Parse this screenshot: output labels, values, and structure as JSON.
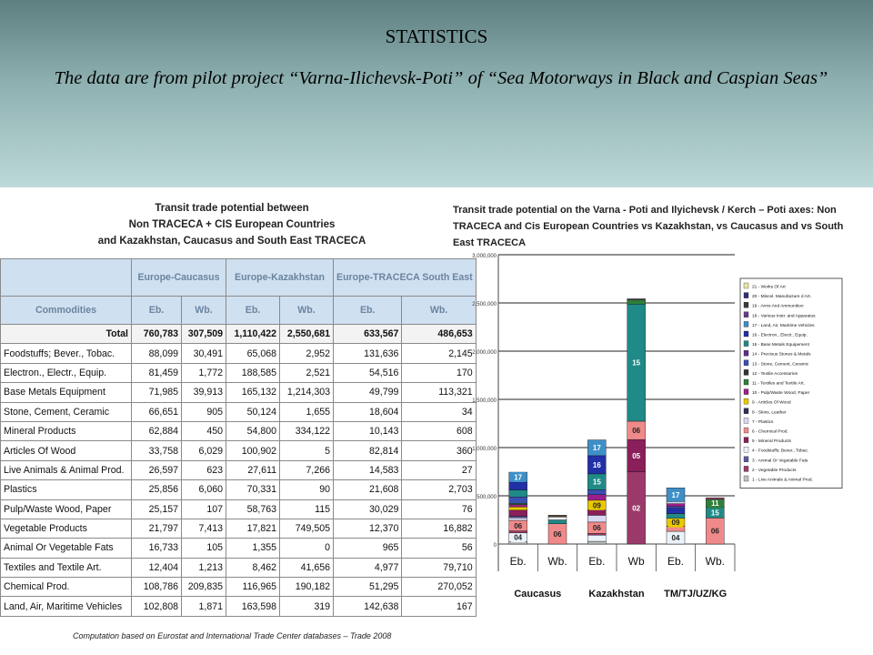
{
  "header": {
    "title": "STATISTICS",
    "subtitle": "The data are from pilot project  “Varna-Ilichevsk-Poti” of “Sea Motorways in Black and Caspian Seas”"
  },
  "table": {
    "title_lines": [
      "Transit trade potential between",
      "Non TRACECA + CIS European Countries",
      "and Kazakhstan, Caucasus and South East TRACECA"
    ],
    "groups": [
      "Europe-Caucasus",
      "Europe-Kazakhstan",
      "Europe-TRACECA South East"
    ],
    "commodities_header": "Commodities",
    "subheaders": [
      "Eb.",
      "Wb.",
      "Eb.",
      "Wb.",
      "Eb.",
      "Wb."
    ],
    "rows": [
      {
        "name": "Total",
        "values": [
          "760,783",
          "307,509",
          "1,110,422",
          "2,550,681",
          "633,567",
          "486,653"
        ]
      },
      {
        "name": "Foodstuffs; Bever., Tobac.",
        "values": [
          "88,099",
          "30,491",
          "65,068",
          "2,952",
          "131,636",
          "2,145"
        ]
      },
      {
        "name": "Electron., Electr., Equip.",
        "values": [
          "81,459",
          "1,772",
          "188,585",
          "2,521",
          "54,516",
          "170"
        ]
      },
      {
        "name": "Base Metals Equipment",
        "values": [
          "71,985",
          "39,913",
          "165,132",
          "1,214,303",
          "49,799",
          "113,321"
        ]
      },
      {
        "name": "Stone, Cement, Ceramic",
        "values": [
          "66,651",
          "905",
          "50,124",
          "1,655",
          "18,604",
          "34"
        ]
      },
      {
        "name": "Mineral Products",
        "values": [
          "62,884",
          "450",
          "54,800",
          "334,122",
          "10,143",
          "608"
        ]
      },
      {
        "name": "Articles Of Wood",
        "values": [
          "33,758",
          "6,029",
          "100,902",
          "5",
          "82,814",
          "360"
        ]
      },
      {
        "name": "Live Animals & Animal Prod.",
        "values": [
          "26,597",
          "623",
          "27,611",
          "7,266",
          "14,583",
          "27"
        ]
      },
      {
        "name": "Plastics",
        "values": [
          "25,856",
          "6,060",
          "70,331",
          "90",
          "21,608",
          "2,703"
        ]
      },
      {
        "name": "Pulp/Waste Wood, Paper",
        "values": [
          "25,157",
          "107",
          "58,763",
          "115",
          "30,029",
          "76"
        ]
      },
      {
        "name": "Vegetable Products",
        "values": [
          "21,797",
          "7,413",
          "17,821",
          "749,505",
          "12,370",
          "16,882"
        ]
      },
      {
        "name": "Animal Or Vegetable Fats",
        "values": [
          "16,733",
          "105",
          "1,355",
          "0",
          "965",
          "56"
        ]
      },
      {
        "name": "Textiles and Textile Art.",
        "values": [
          "12,404",
          "1,213",
          "8,462",
          "41,656",
          "4,977",
          "79,710"
        ]
      },
      {
        "name": "Chemical Prod.",
        "values": [
          "108,786",
          "209,835",
          "116,965",
          "190,182",
          "51,295",
          "270,052"
        ]
      },
      {
        "name": "Land, Air, Maritime Vehicles",
        "values": [
          "102,808",
          "1,871",
          "163,598",
          "319",
          "142,638",
          "167"
        ]
      }
    ],
    "note": "Computation based on Eurostat and International Trade Center databases – Trade 2008"
  },
  "chart_data": {
    "type": "bar",
    "stacked": true,
    "title": "Transit trade potential on the Varna - Poti and Ilyichevsk / Kerch – Poti axes: Non TRACECA and Cis European Countries vs Kazakhstan, vs Caucasus and vs South East TRACECA",
    "categories": [
      "Eb.",
      "Wb.",
      "Eb.",
      "Wb",
      "Eb.",
      "Wb."
    ],
    "groups": [
      {
        "name": "Caucasus",
        "categories": [
          0,
          1
        ]
      },
      {
        "name": "Kazakhstan",
        "categories": [
          2,
          3
        ]
      },
      {
        "name": "TM/TJ/UZ/KG",
        "categories": [
          4,
          5
        ]
      }
    ],
    "ylim": [
      0,
      3000000
    ],
    "yticks": [
      "0",
      "500,000",
      "1,000,000",
      "1,500,000",
      "2,000,000",
      "2,500,000",
      "3,000,000"
    ],
    "grid": true,
    "legend_position": "right",
    "legend": [
      {
        "code": "21",
        "label": "21 - Works Of Art",
        "color": "#e7e6a6"
      },
      {
        "code": "20",
        "label": "20 - Miscel. Manufacture d Art.",
        "color": "#2f2f7a"
      },
      {
        "code": "19",
        "label": "19 - Arms And Ammunition",
        "color": "#3c3c3c"
      },
      {
        "code": "18",
        "label": "18 - Various Instr. and Apparatus",
        "color": "#6a3d8a"
      },
      {
        "code": "17",
        "label": "17 - Land, Air, Maritime Vehicles",
        "color": "#3e8fc8"
      },
      {
        "code": "16",
        "label": "16 - Electron., Electr., Equip.",
        "color": "#2230a8"
      },
      {
        "code": "15",
        "label": "15 - Base Metals Equipement",
        "color": "#1f8a87"
      },
      {
        "code": "14",
        "label": "14 - Precious Stones & Metals",
        "color": "#5b2f8a"
      },
      {
        "code": "13",
        "label": "13 - Stone, Cement, Ceramic",
        "color": "#3a4fb0"
      },
      {
        "code": "12",
        "label": "12 - Textile Accessories",
        "color": "#333333"
      },
      {
        "code": "11",
        "label": "11 - Textiles and Textile Art.",
        "color": "#2f7f3a"
      },
      {
        "code": "10",
        "label": "10 - Pulp/Waste Wood, Paper",
        "color": "#9b1f8a"
      },
      {
        "code": "09",
        "label": "9 - Articles Of Wood",
        "color": "#e8c900"
      },
      {
        "code": "08",
        "label": "8 - Skins, Leather",
        "color": "#2f2f5a"
      },
      {
        "code": "07",
        "label": "7 - Plastics",
        "color": "#d8d8f4"
      },
      {
        "code": "06",
        "label": "6 - Chemical Prod.",
        "color": "#f08a8a"
      },
      {
        "code": "05",
        "label": "5 - Mineral Products",
        "color": "#8a1f5a"
      },
      {
        "code": "04",
        "label": "4 - Foodstuffs; Bever., Tobac.",
        "color": "#eaf2fa"
      },
      {
        "code": "03",
        "label": "3 - Animal Or Vegetable Fats",
        "color": "#5a5a9a"
      },
      {
        "code": "02",
        "label": "2 - Vegetable Products",
        "color": "#9b3a6a"
      },
      {
        "code": "01",
        "label": "1 - Live Animals & Animal Prod.",
        "color": "#c0c0c0"
      }
    ],
    "series_by_bar": [
      [
        {
          "code": "01",
          "value": 26597
        },
        {
          "code": "04",
          "value": 88099
        },
        {
          "code": "02",
          "value": 21797
        },
        {
          "code": "06",
          "value": 108786
        },
        {
          "code": "07",
          "value": 25856
        },
        {
          "code": "03",
          "value": 16733
        },
        {
          "code": "05",
          "value": 62884
        },
        {
          "code": "09",
          "value": 33758
        },
        {
          "code": "10",
          "value": 25157
        },
        {
          "code": "11",
          "value": 12404
        },
        {
          "code": "13",
          "value": 66651
        },
        {
          "code": "15",
          "value": 71985
        },
        {
          "code": "16",
          "value": 81459
        },
        {
          "code": "17",
          "value": 102808
        }
      ],
      [
        {
          "code": "06",
          "value": 209835
        },
        {
          "code": "15",
          "value": 39913
        },
        {
          "code": "04",
          "value": 30491
        },
        {
          "code": "02",
          "value": 7413
        },
        {
          "code": "09",
          "value": 6029
        },
        {
          "code": "07",
          "value": 6060
        }
      ],
      [
        {
          "code": "01",
          "value": 27611
        },
        {
          "code": "04",
          "value": 65068
        },
        {
          "code": "02",
          "value": 17821
        },
        {
          "code": "06",
          "value": 116965
        },
        {
          "code": "07",
          "value": 70331
        },
        {
          "code": "05",
          "value": 54800
        },
        {
          "code": "09",
          "value": 100902
        },
        {
          "code": "10",
          "value": 58763
        },
        {
          "code": "13",
          "value": 50124
        },
        {
          "code": "15",
          "value": 165132
        },
        {
          "code": "16",
          "value": 188585
        },
        {
          "code": "17",
          "value": 163598
        }
      ],
      [
        {
          "code": "02",
          "value": 749505
        },
        {
          "code": "05",
          "value": 334122
        },
        {
          "code": "06",
          "value": 190182
        },
        {
          "code": "15",
          "value": 1214303
        },
        {
          "code": "11",
          "value": 41656
        },
        {
          "code": "01",
          "value": 7266
        },
        {
          "code": "04",
          "value": 2952
        },
        {
          "code": "16",
          "value": 2521
        }
      ],
      [
        {
          "code": "04",
          "value": 131636
        },
        {
          "code": "06",
          "value": 51295
        },
        {
          "code": "09",
          "value": 82814
        },
        {
          "code": "15",
          "value": 49799
        },
        {
          "code": "16",
          "value": 54516
        },
        {
          "code": "13",
          "value": 18604
        },
        {
          "code": "10",
          "value": 30029
        },
        {
          "code": "07",
          "value": 21608
        },
        {
          "code": "17",
          "value": 142638
        }
      ],
      [
        {
          "code": "06",
          "value": 270052
        },
        {
          "code": "15",
          "value": 113321
        },
        {
          "code": "11",
          "value": 79710
        },
        {
          "code": "02",
          "value": 16882
        }
      ]
    ],
    "labels_by_bar": [
      [
        "04",
        "06",
        "17"
      ],
      [
        "06"
      ],
      [
        "06",
        "09",
        "15",
        "16",
        "17"
      ],
      [
        "02",
        "05",
        "06",
        "15"
      ],
      [
        "04",
        "09",
        "17"
      ],
      [
        "06",
        "11",
        "15"
      ]
    ]
  }
}
